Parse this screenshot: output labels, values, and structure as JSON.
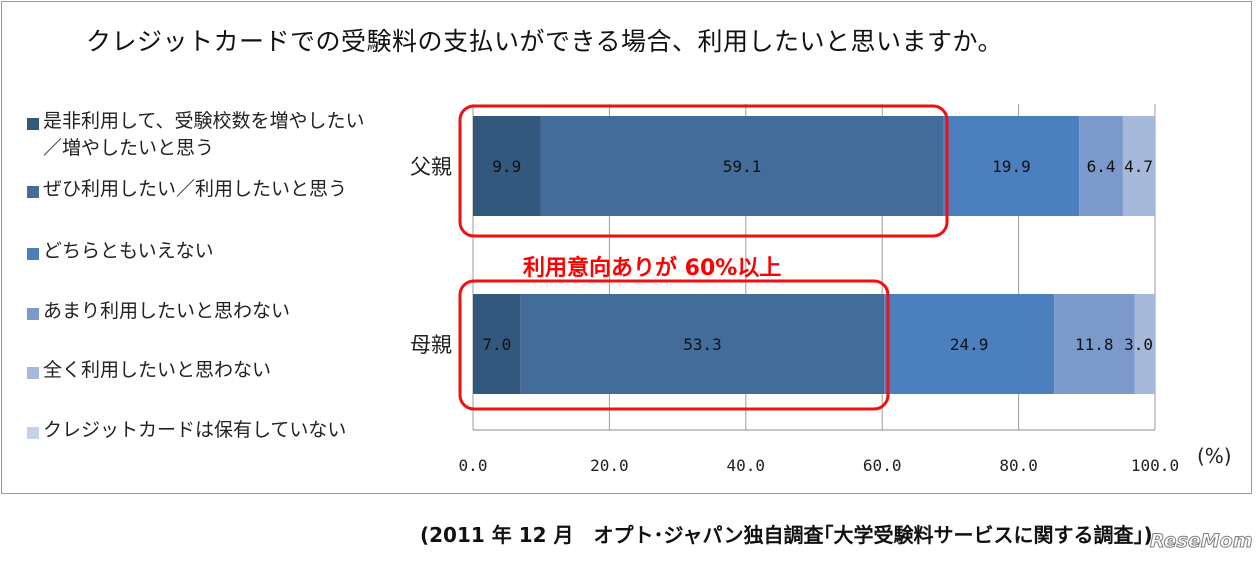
{
  "chart_data": {
    "type": "bar",
    "orientation": "horizontal",
    "stacked": true,
    "title": "クレジットカードでの受験料の支払いができる場合、利用したいと思いますか。",
    "categories": [
      "父親",
      "母親"
    ],
    "series": [
      {
        "name": "是非利用して、受験校数を増やしたい\n／増やしたいと思う",
        "values": [
          9.9,
          7.0
        ],
        "labels": [
          "9.9",
          "7.0"
        ],
        "color": "#33587e"
      },
      {
        "name": "ぜひ利用したい／利用したいと思う",
        "values": [
          59.1,
          53.3
        ],
        "labels": [
          "59.1",
          "53.3"
        ],
        "color": "#436c9b"
      },
      {
        "name": "どちらともいえない",
        "values": [
          19.9,
          24.9
        ],
        "labels": [
          "19.9",
          "24.9"
        ],
        "color": "#4c7fbe"
      },
      {
        "name": "あまり利用したいと思わない",
        "values": [
          6.4,
          11.8
        ],
        "labels": [
          "6.4",
          "11.8"
        ],
        "color": "#7b9acb"
      },
      {
        "name": "全く利用したいと思わない",
        "values": [
          4.7,
          3.0
        ],
        "labels": [
          "4.7",
          "3.0"
        ],
        "color": "#a7b9da"
      },
      {
        "name": "クレジットカードは保有していない",
        "values": [
          0,
          0
        ],
        "labels": [
          "",
          ""
        ],
        "color": "#c6d2e6"
      }
    ],
    "xlim": [
      0,
      100
    ],
    "xticks": [
      "0.0",
      "20.0",
      "40.0",
      "60.0",
      "80.0",
      "100.0"
    ],
    "xunit": "(%)",
    "grid": true,
    "legend_position": "left",
    "annotation": "利用意向ありが 60%以上",
    "annotation_color": "#ff0000"
  },
  "source_note": "(2011 年 12 月　オプト･ジャパン独自調査｢大学受験料サービスに関する調査｣)",
  "watermark": "ReseMom"
}
